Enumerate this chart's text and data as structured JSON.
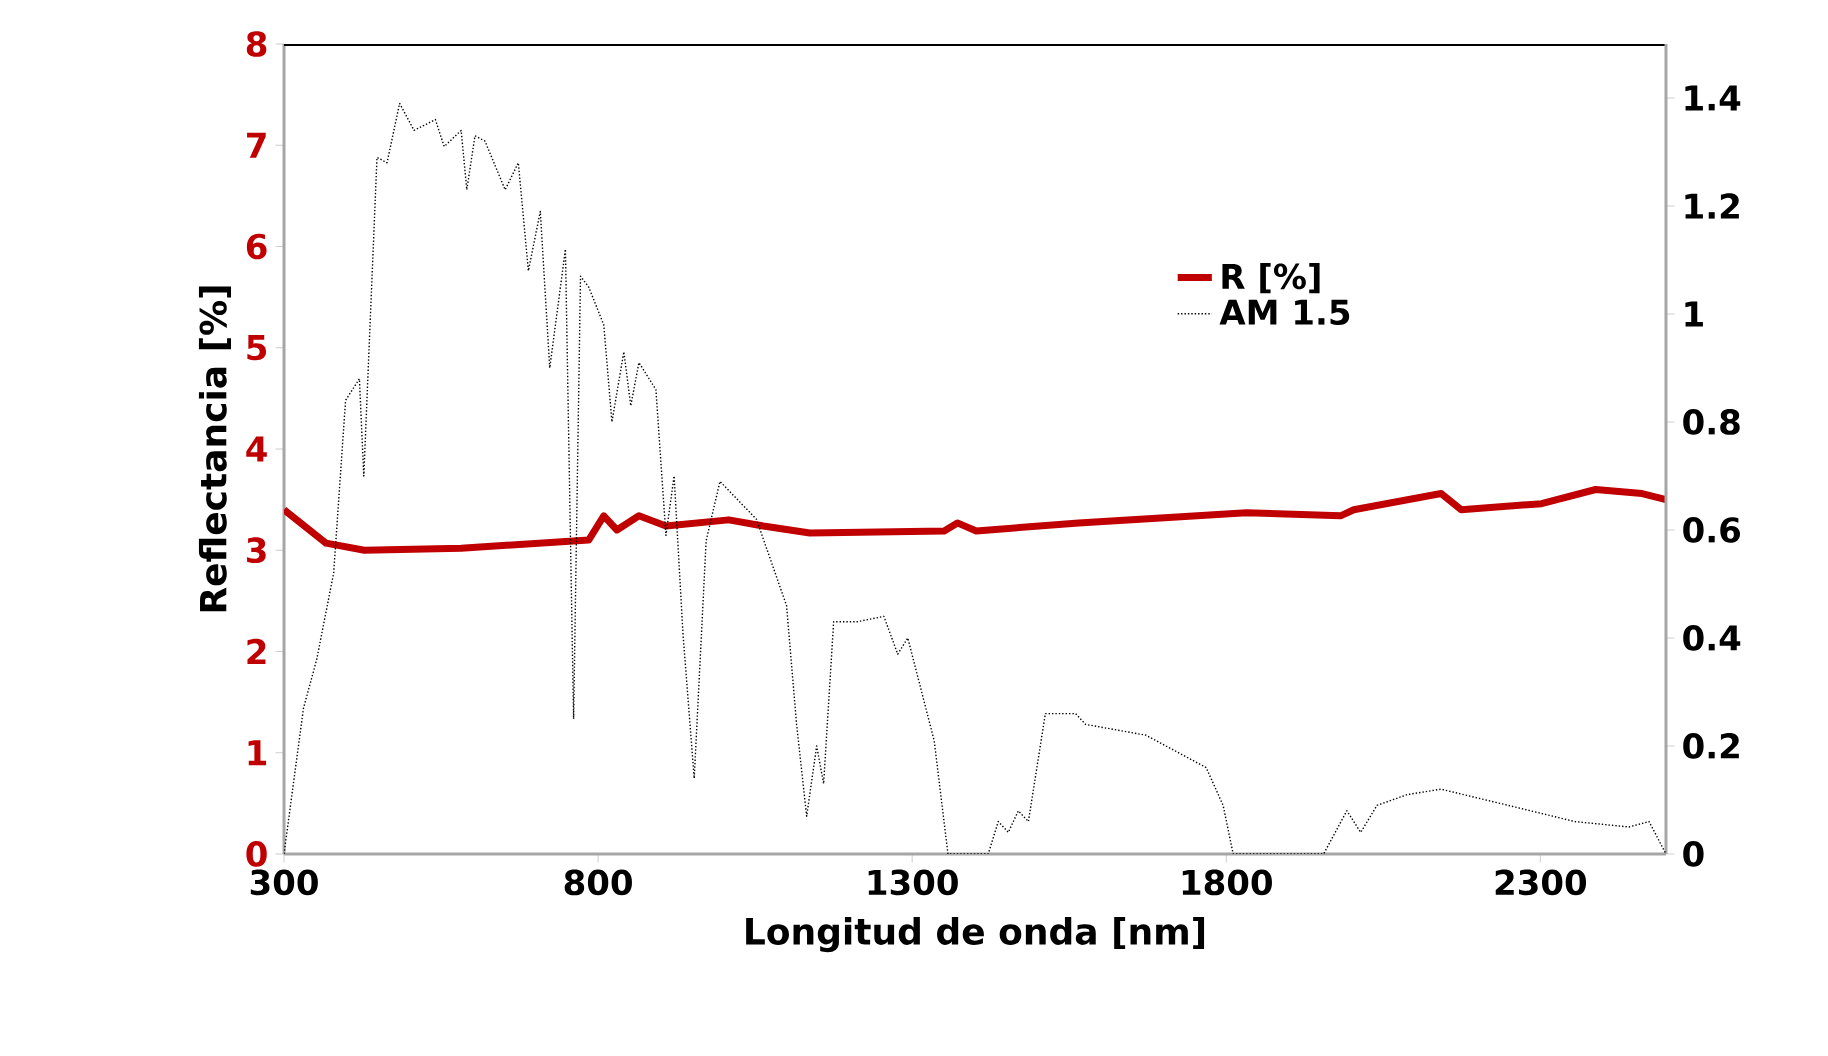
{
  "chart_data": {
    "type": "line",
    "xlabel": "Longitud de onda [nm]",
    "ylabel": "Reflectancia [%]",
    "xlim": [
      300,
      2500
    ],
    "xticks": [
      300,
      800,
      1300,
      1800,
      2300
    ],
    "ylim": [
      0,
      8
    ],
    "yticks": [
      0,
      1,
      2,
      3,
      4,
      5,
      6,
      7,
      8
    ],
    "y2lim": [
      0,
      1.5
    ],
    "y2ticks": [
      0,
      0.2,
      0.4,
      0.6,
      0.8,
      1,
      1.2,
      1.4
    ],
    "legend": "top right",
    "series": [
      {
        "name": "R [%]",
        "color": "#c00000",
        "line_style": "solid",
        "axis": "y",
        "x": [
          300,
          367,
          428,
          582,
          785,
          809,
          830,
          865,
          908,
          1008,
          1063,
          1137,
          1351,
          1372,
          1402,
          1565,
          1832,
          1982,
          2003,
          2142,
          2174,
          2302,
          2388,
          2462,
          2500
        ],
        "values": [
          3.4,
          3.07,
          3.0,
          3.02,
          3.1,
          3.34,
          3.2,
          3.34,
          3.24,
          3.3,
          3.24,
          3.17,
          3.19,
          3.27,
          3.19,
          3.27,
          3.37,
          3.34,
          3.4,
          3.56,
          3.4,
          3.46,
          3.6,
          3.56,
          3.5
        ]
      },
      {
        "name": "AM 1.5",
        "color": "#000000",
        "line_style": "dotted",
        "axis": "y2",
        "x": [
          300,
          331,
          352,
          379,
          398,
          420,
          427,
          448,
          464,
          484,
          507,
          541,
          555,
          582,
          591,
          604,
          620,
          652,
          673,
          689,
          708,
          723,
          748,
          761,
          772,
          785,
          809,
          822,
          841,
          852,
          865,
          892,
          908,
          921,
          935,
          953,
          972,
          994,
          1052,
          1100,
          1116,
          1132,
          1148,
          1159,
          1175,
          1212,
          1255,
          1277,
          1293,
          1335,
          1357,
          1421,
          1437,
          1453,
          1469,
          1485,
          1512,
          1560,
          1576,
          1672,
          1768,
          1795,
          1811,
          1955,
          1992,
          2014,
          2040,
          2088,
          2142,
          2249,
          2355,
          2441,
          2473,
          2500
        ],
        "values": [
          0,
          0.27,
          0.36,
          0.52,
          0.84,
          0.88,
          0.7,
          1.29,
          1.28,
          1.39,
          1.34,
          1.36,
          1.31,
          1.34,
          1.23,
          1.33,
          1.32,
          1.23,
          1.28,
          1.08,
          1.19,
          0.9,
          1.12,
          0.25,
          1.07,
          1.05,
          0.98,
          0.8,
          0.93,
          0.83,
          0.91,
          0.86,
          0.59,
          0.7,
          0.41,
          0.14,
          0.58,
          0.69,
          0.62,
          0.46,
          0.24,
          0.07,
          0.2,
          0.13,
          0.43,
          0.43,
          0.44,
          0.37,
          0.4,
          0.21,
          0,
          0,
          0.06,
          0.04,
          0.08,
          0.06,
          0.26,
          0.26,
          0.24,
          0.22,
          0.16,
          0.09,
          0,
          0,
          0.08,
          0.04,
          0.09,
          0.11,
          0.12,
          0.09,
          0.06,
          0.05,
          0.06,
          0
        ]
      }
    ]
  }
}
